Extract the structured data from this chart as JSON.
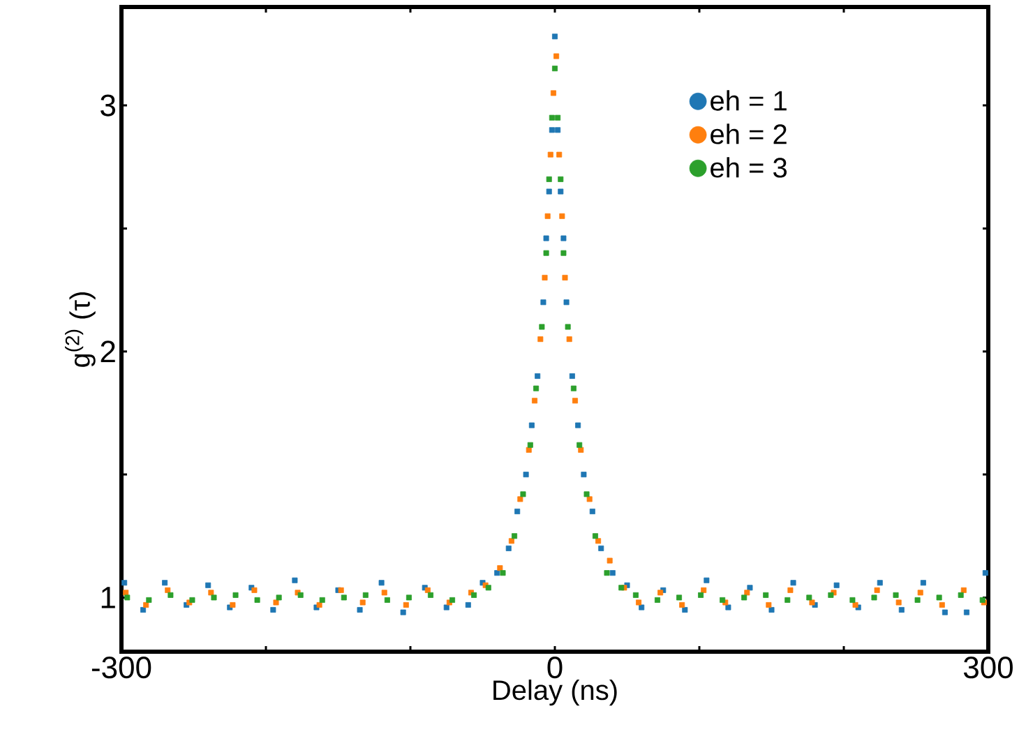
{
  "chart_data": {
    "type": "scatter",
    "xlabel": "Delay (ns)",
    "ylabel": "g$^{(2)}$ (τ)",
    "xlim": [
      -300,
      300
    ],
    "ylim": [
      0.78,
      3.4
    ],
    "xticks": [
      -300,
      {
        "value": -200,
        "label": null
      },
      {
        "value": -100,
        "label": null
      },
      0,
      {
        "value": 100,
        "label": null
      },
      {
        "value": 200,
        "label": null
      },
      300
    ],
    "yticks": [
      1,
      {
        "value": 1.5,
        "label": null
      },
      2,
      {
        "value": 2.5,
        "label": null
      },
      3
    ],
    "marker": "square",
    "legend": "top right",
    "series": [
      {
        "name": "eh = 1",
        "color": "#1f77b4",
        "x": [
          -298,
          -285,
          -270,
          -255,
          -240,
          -225,
          -210,
          -195,
          -180,
          -165,
          -150,
          -135,
          -120,
          -105,
          -90,
          -75,
          -60,
          -50,
          -40,
          -32,
          -26,
          -20,
          -16,
          -12,
          -8,
          -6,
          -4,
          -2,
          0,
          2,
          4,
          6,
          8,
          12,
          16,
          20,
          26,
          32,
          40,
          50,
          60,
          75,
          90,
          105,
          120,
          135,
          150,
          165,
          180,
          195,
          210,
          225,
          240,
          255,
          270,
          285,
          298
        ],
        "values": [
          1.06,
          0.95,
          1.06,
          0.97,
          1.05,
          0.96,
          1.04,
          0.95,
          1.07,
          0.96,
          1.03,
          0.95,
          1.06,
          0.94,
          1.04,
          0.96,
          0.97,
          1.06,
          1.1,
          1.2,
          1.35,
          1.5,
          1.7,
          1.9,
          2.2,
          2.46,
          2.65,
          2.9,
          3.28,
          2.9,
          2.65,
          2.46,
          2.2,
          1.9,
          1.7,
          1.5,
          1.35,
          1.2,
          1.1,
          1.05,
          0.96,
          1.03,
          0.95,
          1.07,
          0.96,
          1.04,
          0.95,
          1.06,
          0.97,
          1.05,
          0.96,
          1.06,
          0.95,
          1.06,
          0.94,
          0.94,
          1.1
        ]
      },
      {
        "name": "eh = 2",
        "color": "#ff7f0e",
        "x": [
          -297,
          -283,
          -268,
          -253,
          -238,
          -223,
          -208,
          -193,
          -178,
          -163,
          -148,
          -133,
          -118,
          -103,
          -88,
          -73,
          -58,
          -48,
          -38,
          -30,
          -24,
          -18,
          -14,
          -10,
          -7,
          -5,
          -3,
          -1,
          1,
          3,
          5,
          7,
          10,
          14,
          18,
          24,
          30,
          38,
          48,
          58,
          73,
          88,
          103,
          118,
          133,
          148,
          163,
          178,
          193,
          208,
          223,
          238,
          253,
          268,
          283,
          297
        ],
        "values": [
          1.02,
          0.97,
          1.03,
          0.98,
          1.02,
          0.97,
          1.03,
          0.98,
          1.02,
          0.97,
          1.03,
          0.98,
          1.02,
          0.97,
          1.03,
          0.98,
          1.02,
          1.05,
          1.12,
          1.23,
          1.4,
          1.6,
          1.8,
          2.05,
          2.3,
          2.55,
          2.8,
          3.05,
          3.2,
          2.8,
          2.55,
          2.3,
          2.05,
          1.8,
          1.6,
          1.4,
          1.23,
          1.15,
          1.04,
          0.98,
          1.02,
          0.97,
          1.03,
          0.98,
          1.02,
          0.97,
          1.03,
          0.98,
          1.02,
          0.97,
          1.03,
          0.98,
          1.02,
          0.97,
          1.03,
          0.98
        ]
      },
      {
        "name": "eh = 3",
        "color": "#2ca02c",
        "x": [
          -296,
          -281,
          -266,
          -251,
          -236,
          -221,
          -206,
          -191,
          -176,
          -161,
          -146,
          -131,
          -116,
          -101,
          -86,
          -71,
          -56,
          -46,
          -36,
          -28,
          -22,
          -17,
          -13,
          -9,
          -6,
          -4,
          -2,
          0,
          2,
          4,
          6,
          9,
          13,
          17,
          22,
          28,
          36,
          46,
          56,
          71,
          86,
          101,
          116,
          131,
          146,
          161,
          176,
          191,
          206,
          221,
          236,
          251,
          266,
          281,
          296
        ],
        "values": [
          1.0,
          0.99,
          1.01,
          0.99,
          1.0,
          1.01,
          0.99,
          1.0,
          1.01,
          0.99,
          1.0,
          1.01,
          0.99,
          1.0,
          1.01,
          0.99,
          1.01,
          1.04,
          1.1,
          1.25,
          1.42,
          1.62,
          1.85,
          2.1,
          2.4,
          2.7,
          2.95,
          3.15,
          2.95,
          2.7,
          2.4,
          2.1,
          1.85,
          1.62,
          1.42,
          1.25,
          1.1,
          1.04,
          1.01,
          0.99,
          1.0,
          1.01,
          0.99,
          1.0,
          1.01,
          0.99,
          1.0,
          1.01,
          0.99,
          1.0,
          1.01,
          0.99,
          1.0,
          1.01,
          0.99
        ]
      }
    ]
  }
}
